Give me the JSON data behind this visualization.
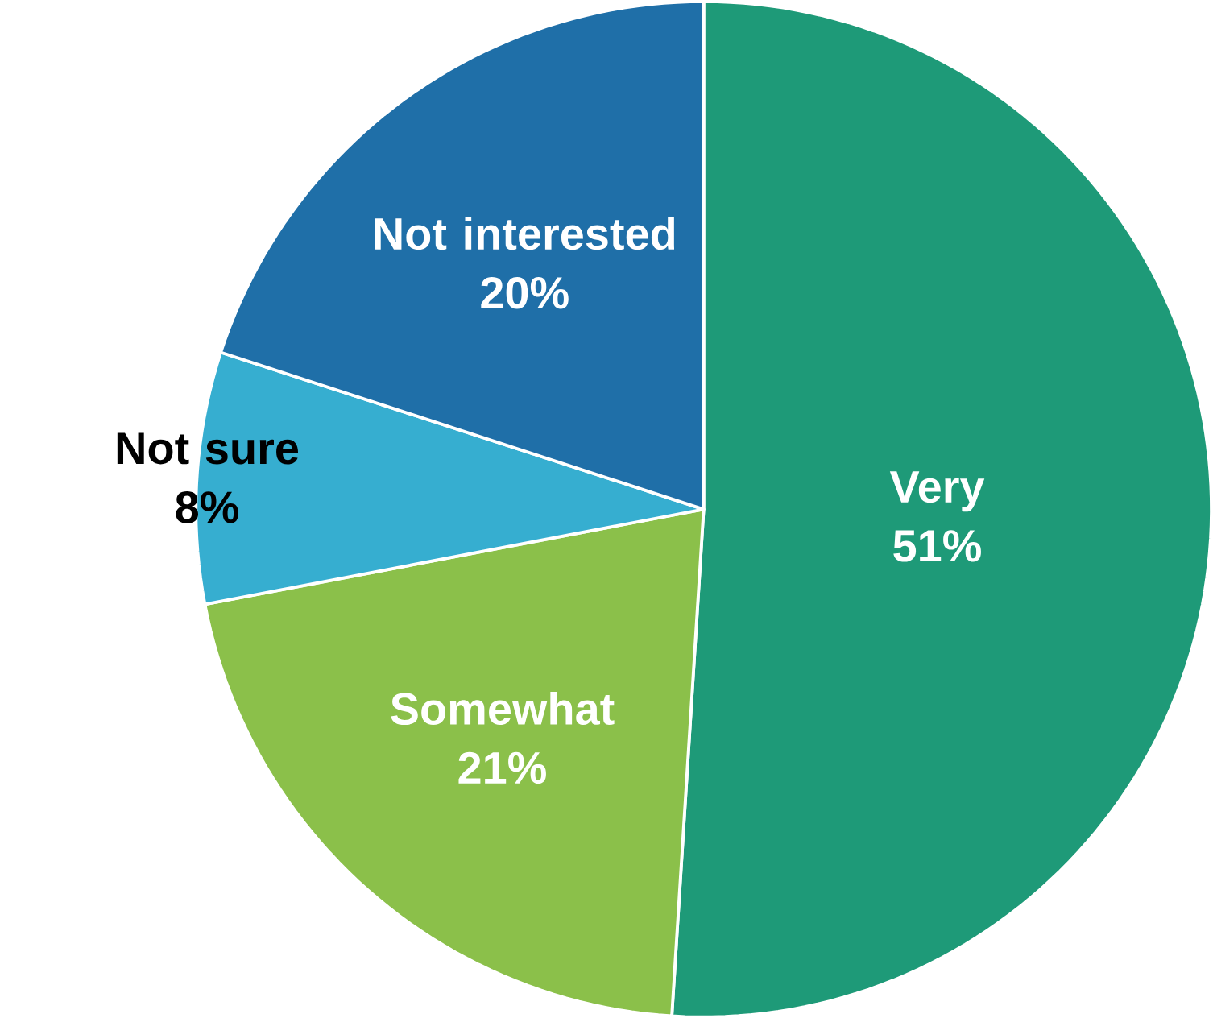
{
  "chart_data": {
    "type": "pie",
    "categories": [
      "Very",
      "Somewhat",
      "Not sure",
      "Not interested"
    ],
    "values": [
      51,
      21,
      8,
      20
    ],
    "colors": [
      "#1e9a78",
      "#8bc04a",
      "#36aed0",
      "#1f6fa8"
    ],
    "value_labels": [
      "51%",
      "21%",
      "8%",
      "20%"
    ]
  }
}
